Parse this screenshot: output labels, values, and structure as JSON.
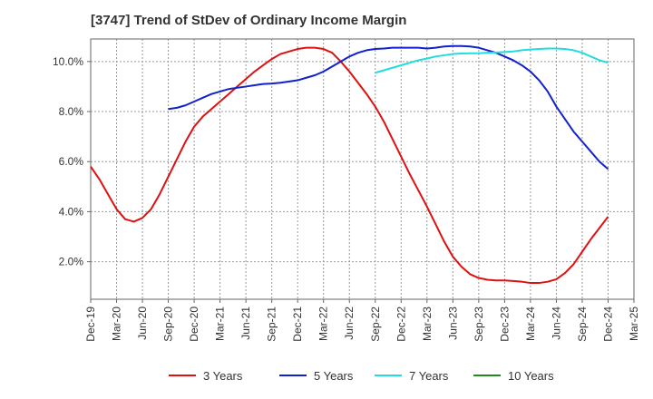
{
  "chart_data": {
    "type": "line",
    "title": "[3747]  Trend of StDev of Ordinary Income Margin",
    "xlabel": "",
    "ylabel": "",
    "x_ticks": [
      "Dec-19",
      "Mar-20",
      "Jun-20",
      "Sep-20",
      "Dec-20",
      "Mar-21",
      "Jun-21",
      "Sep-21",
      "Dec-21",
      "Mar-22",
      "Jun-22",
      "Sep-22",
      "Dec-22",
      "Mar-23",
      "Jun-23",
      "Sep-23",
      "Dec-23",
      "Mar-24",
      "Jun-24",
      "Sep-24",
      "Dec-24",
      "Mar-25"
    ],
    "y_ticks": [
      "2.0%",
      "4.0%",
      "6.0%",
      "8.0%",
      "10.0%"
    ],
    "y_tick_values": [
      2,
      4,
      6,
      8,
      10
    ],
    "ylim": [
      0.5,
      10.9
    ],
    "grid": true,
    "legend_position": "bottom",
    "series": [
      {
        "name": "3 Years",
        "color": "#dd1111",
        "points": [
          [
            "Dec-19",
            5.8
          ],
          [
            "Jan-20",
            5.3
          ],
          [
            "Feb-20",
            4.7
          ],
          [
            "Mar-20",
            4.1
          ],
          [
            "Apr-20",
            3.7
          ],
          [
            "May-20",
            3.6
          ],
          [
            "Jun-20",
            3.75
          ],
          [
            "Jul-20",
            4.1
          ],
          [
            "Aug-20",
            4.7
          ],
          [
            "Sep-20",
            5.4
          ],
          [
            "Oct-20",
            6.1
          ],
          [
            "Nov-20",
            6.8
          ],
          [
            "Dec-20",
            7.4
          ],
          [
            "Jan-21",
            7.8
          ],
          [
            "Feb-21",
            8.1
          ],
          [
            "Mar-21",
            8.4
          ],
          [
            "Apr-21",
            8.7
          ],
          [
            "May-21",
            9.0
          ],
          [
            "Jun-21",
            9.3
          ],
          [
            "Jul-21",
            9.6
          ],
          [
            "Aug-21",
            9.85
          ],
          [
            "Sep-21",
            10.1
          ],
          [
            "Oct-21",
            10.3
          ],
          [
            "Nov-21",
            10.4
          ],
          [
            "Dec-21",
            10.5
          ],
          [
            "Jan-22",
            10.55
          ],
          [
            "Feb-22",
            10.55
          ],
          [
            "Mar-22",
            10.5
          ],
          [
            "Apr-22",
            10.35
          ],
          [
            "May-22",
            10.0
          ],
          [
            "Jun-22",
            9.6
          ],
          [
            "Jul-22",
            9.15
          ],
          [
            "Aug-22",
            8.7
          ],
          [
            "Sep-22",
            8.2
          ],
          [
            "Oct-22",
            7.6
          ],
          [
            "Nov-22",
            6.9
          ],
          [
            "Dec-22",
            6.2
          ],
          [
            "Jan-23",
            5.5
          ],
          [
            "Feb-23",
            4.85
          ],
          [
            "Mar-23",
            4.2
          ],
          [
            "Apr-23",
            3.5
          ],
          [
            "May-23",
            2.8
          ],
          [
            "Jun-23",
            2.2
          ],
          [
            "Jul-23",
            1.8
          ],
          [
            "Aug-23",
            1.5
          ],
          [
            "Sep-23",
            1.35
          ],
          [
            "Oct-23",
            1.28
          ],
          [
            "Nov-23",
            1.25
          ],
          [
            "Dec-23",
            1.25
          ],
          [
            "Jan-24",
            1.23
          ],
          [
            "Feb-24",
            1.2
          ],
          [
            "Mar-24",
            1.15
          ],
          [
            "Apr-24",
            1.15
          ],
          [
            "May-24",
            1.2
          ],
          [
            "Jun-24",
            1.3
          ],
          [
            "Jul-24",
            1.55
          ],
          [
            "Aug-24",
            1.9
          ],
          [
            "Sep-24",
            2.4
          ],
          [
            "Oct-24",
            2.9
          ],
          [
            "Nov-24",
            3.35
          ],
          [
            "Dec-24",
            3.8
          ]
        ]
      },
      {
        "name": "5 Years",
        "color": "#1122cc",
        "points": [
          [
            "Sep-20",
            8.1
          ],
          [
            "Oct-20",
            8.15
          ],
          [
            "Nov-20",
            8.25
          ],
          [
            "Dec-20",
            8.4
          ],
          [
            "Jan-21",
            8.55
          ],
          [
            "Feb-21",
            8.7
          ],
          [
            "Mar-21",
            8.8
          ],
          [
            "Apr-21",
            8.9
          ],
          [
            "May-21",
            8.95
          ],
          [
            "Jun-21",
            9.0
          ],
          [
            "Jul-21",
            9.05
          ],
          [
            "Aug-21",
            9.1
          ],
          [
            "Sep-21",
            9.12
          ],
          [
            "Oct-21",
            9.15
          ],
          [
            "Nov-21",
            9.2
          ],
          [
            "Dec-21",
            9.25
          ],
          [
            "Jan-22",
            9.35
          ],
          [
            "Feb-22",
            9.45
          ],
          [
            "Mar-22",
            9.6
          ],
          [
            "Apr-22",
            9.8
          ],
          [
            "May-22",
            10.0
          ],
          [
            "Jun-22",
            10.2
          ],
          [
            "Jul-22",
            10.35
          ],
          [
            "Aug-22",
            10.45
          ],
          [
            "Sep-22",
            10.5
          ],
          [
            "Oct-22",
            10.52
          ],
          [
            "Nov-22",
            10.55
          ],
          [
            "Dec-22",
            10.55
          ],
          [
            "Jan-23",
            10.55
          ],
          [
            "Feb-23",
            10.55
          ],
          [
            "Mar-23",
            10.52
          ],
          [
            "Apr-23",
            10.55
          ],
          [
            "May-23",
            10.6
          ],
          [
            "Jun-23",
            10.62
          ],
          [
            "Jul-23",
            10.62
          ],
          [
            "Aug-23",
            10.6
          ],
          [
            "Sep-23",
            10.55
          ],
          [
            "Oct-23",
            10.45
          ],
          [
            "Nov-23",
            10.35
          ],
          [
            "Dec-23",
            10.2
          ],
          [
            "Jan-24",
            10.05
          ],
          [
            "Feb-24",
            9.85
          ],
          [
            "Mar-24",
            9.6
          ],
          [
            "Apr-24",
            9.25
          ],
          [
            "May-24",
            8.8
          ],
          [
            "Jun-24",
            8.2
          ],
          [
            "Jul-24",
            7.7
          ],
          [
            "Aug-24",
            7.2
          ],
          [
            "Sep-24",
            6.8
          ],
          [
            "Oct-24",
            6.4
          ],
          [
            "Nov-24",
            6.0
          ],
          [
            "Dec-24",
            5.7
          ]
        ]
      },
      {
        "name": "7 Years",
        "color": "#22dddd",
        "points": [
          [
            "Sep-22",
            9.55
          ],
          [
            "Oct-22",
            9.65
          ],
          [
            "Nov-22",
            9.75
          ],
          [
            "Dec-22",
            9.85
          ],
          [
            "Jan-23",
            9.95
          ],
          [
            "Feb-23",
            10.05
          ],
          [
            "Mar-23",
            10.12
          ],
          [
            "Apr-23",
            10.2
          ],
          [
            "May-23",
            10.25
          ],
          [
            "Jun-23",
            10.3
          ],
          [
            "Jul-23",
            10.32
          ],
          [
            "Aug-23",
            10.33
          ],
          [
            "Sep-23",
            10.33
          ],
          [
            "Oct-23",
            10.35
          ],
          [
            "Nov-23",
            10.36
          ],
          [
            "Dec-23",
            10.38
          ],
          [
            "Jan-24",
            10.4
          ],
          [
            "Feb-24",
            10.45
          ],
          [
            "Mar-24",
            10.48
          ],
          [
            "Apr-24",
            10.5
          ],
          [
            "May-24",
            10.52
          ],
          [
            "Jun-24",
            10.52
          ],
          [
            "Jul-24",
            10.5
          ],
          [
            "Aug-24",
            10.45
          ],
          [
            "Sep-24",
            10.35
          ],
          [
            "Oct-24",
            10.2
          ],
          [
            "Nov-24",
            10.05
          ],
          [
            "Dec-24",
            9.95
          ]
        ]
      },
      {
        "name": "10 Years",
        "color": "#228822",
        "points": []
      }
    ]
  }
}
